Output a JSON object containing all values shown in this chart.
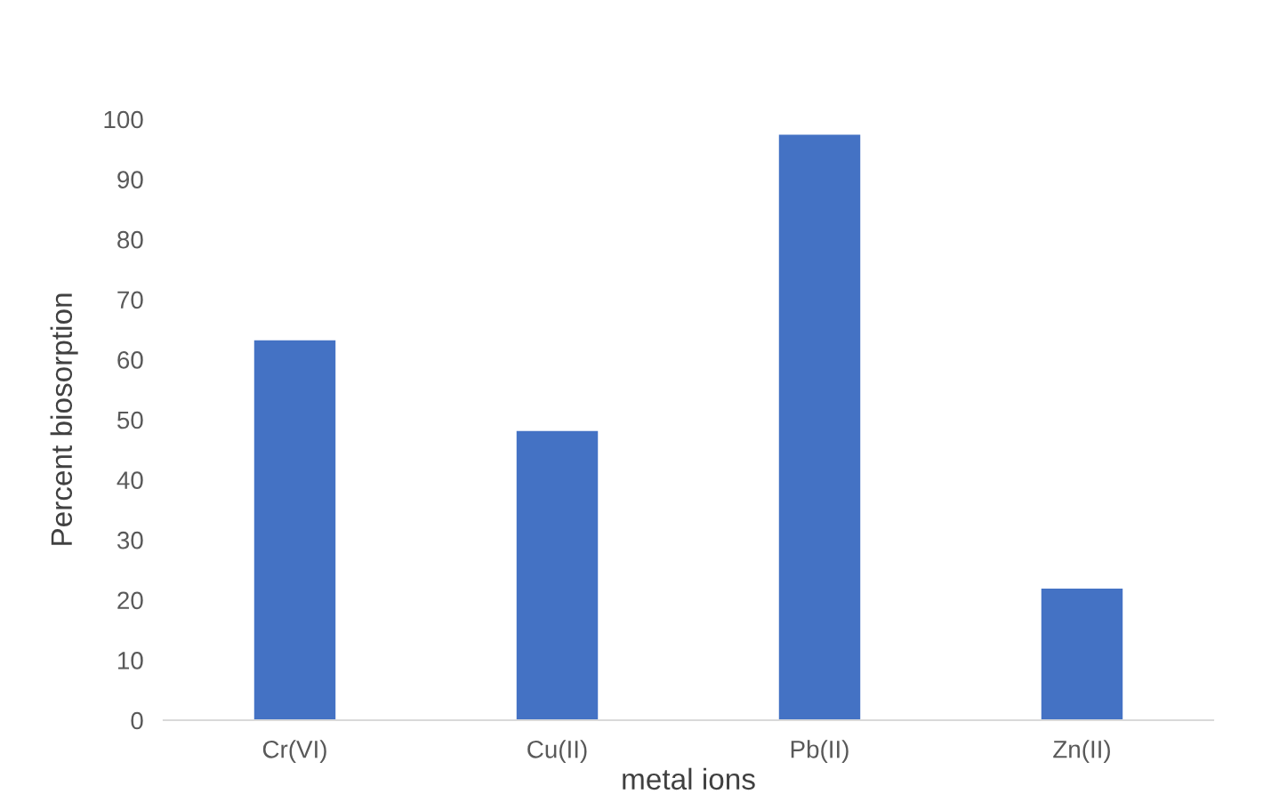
{
  "chart_data": {
    "type": "bar",
    "xlabel": "metal ions",
    "ylabel": "Percent biosorption",
    "categories": [
      "Cr(VI)",
      "Cu(II)",
      "Pb(II)",
      "Zn(II)"
    ],
    "values": [
      63.2,
      48.1,
      97.4,
      21.9
    ],
    "color": "#4472c4",
    "ylim": [
      0,
      100
    ],
    "yticks": [
      0,
      10,
      20,
      30,
      40,
      50,
      60,
      70,
      80,
      90,
      100
    ],
    "grid": false,
    "legend": false
  }
}
